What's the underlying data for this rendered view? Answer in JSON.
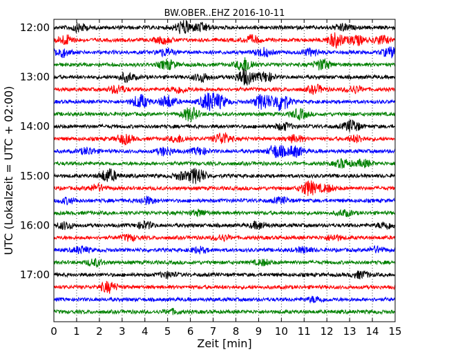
{
  "chart_data": {
    "type": "line",
    "title": "BW.OBER..EHZ 2016-10-11",
    "xlabel": "Zeit  [min]",
    "ylabel": "UTC (Lokalzeit = UTC + 02:00)",
    "xlim": [
      0,
      15
    ],
    "x_ticks": [
      "0",
      "1",
      "2",
      "3",
      "4",
      "5",
      "6",
      "7",
      "8",
      "9",
      "10",
      "11",
      "12",
      "13",
      "14",
      "15"
    ],
    "y_ticks": [
      {
        "label": "12:00",
        "row": 0
      },
      {
        "label": "13:00",
        "row": 4
      },
      {
        "label": "14:00",
        "row": 8
      },
      {
        "label": "15:00",
        "row": 12
      },
      {
        "label": "16:00",
        "row": 16
      },
      {
        "label": "17:00",
        "row": 20
      }
    ],
    "grid": "vertical dotted",
    "colors": [
      "#000000",
      "#ff0000",
      "#0000ff",
      "#008000"
    ],
    "row_duration_min": 15,
    "rows": [
      {
        "time": "12:00",
        "color": "#000000",
        "events": [
          {
            "t": 1.1,
            "amp": 0.6
          },
          {
            "t": 5.7,
            "amp": 1.0
          },
          {
            "t": 6.5,
            "amp": 0.6
          },
          {
            "t": 12.7,
            "amp": 0.5
          }
        ]
      },
      {
        "time": "12:15",
        "color": "#ff0000",
        "events": [
          {
            "t": 0.5,
            "amp": 0.7
          },
          {
            "t": 4.8,
            "amp": 0.5
          },
          {
            "t": 8.7,
            "amp": 0.6
          },
          {
            "t": 12.4,
            "amp": 1.1
          },
          {
            "t": 13.3,
            "amp": 0.7
          },
          {
            "t": 14.4,
            "amp": 0.6
          }
        ]
      },
      {
        "time": "12:30",
        "color": "#0000ff",
        "events": [
          {
            "t": 0.3,
            "amp": 0.7
          },
          {
            "t": 4.9,
            "amp": 0.5
          },
          {
            "t": 9.2,
            "amp": 0.6
          },
          {
            "t": 11.3,
            "amp": 0.5
          },
          {
            "t": 14.8,
            "amp": 0.7
          }
        ]
      },
      {
        "time": "12:45",
        "color": "#008000",
        "events": [
          {
            "t": 5.0,
            "amp": 0.7
          },
          {
            "t": 8.4,
            "amp": 1.1
          },
          {
            "t": 11.8,
            "amp": 0.8
          }
        ]
      },
      {
        "time": "13:00",
        "color": "#000000",
        "events": [
          {
            "t": 3.2,
            "amp": 0.6
          },
          {
            "t": 6.5,
            "amp": 0.6
          },
          {
            "t": 8.4,
            "amp": 1.2
          },
          {
            "t": 9.3,
            "amp": 0.7
          }
        ]
      },
      {
        "time": "13:15",
        "color": "#ff0000",
        "events": [
          {
            "t": 2.8,
            "amp": 0.6
          },
          {
            "t": 5.5,
            "amp": 0.5
          },
          {
            "t": 11.5,
            "amp": 0.6
          },
          {
            "t": 13.2,
            "amp": 0.5
          }
        ]
      },
      {
        "time": "13:30",
        "color": "#0000ff",
        "events": [
          {
            "t": 3.8,
            "amp": 1.0
          },
          {
            "t": 5.0,
            "amp": 0.9
          },
          {
            "t": 6.8,
            "amp": 1.3
          },
          {
            "t": 7.3,
            "amp": 0.8
          },
          {
            "t": 9.2,
            "amp": 1.2
          },
          {
            "t": 10.0,
            "amp": 1.4
          }
        ]
      },
      {
        "time": "13:45",
        "color": "#008000",
        "events": [
          {
            "t": 6.0,
            "amp": 1.0
          },
          {
            "t": 10.8,
            "amp": 0.7
          }
        ]
      },
      {
        "time": "14:00",
        "color": "#000000",
        "events": [
          {
            "t": 10.1,
            "amp": 0.5
          },
          {
            "t": 13.1,
            "amp": 0.9
          }
        ]
      },
      {
        "time": "14:15",
        "color": "#ff0000",
        "events": [
          {
            "t": 3.1,
            "amp": 0.7
          },
          {
            "t": 5.5,
            "amp": 0.5
          },
          {
            "t": 7.4,
            "amp": 0.9
          },
          {
            "t": 10.6,
            "amp": 0.5
          },
          {
            "t": 13.3,
            "amp": 0.5
          }
        ]
      },
      {
        "time": "14:30",
        "color": "#0000ff",
        "events": [
          {
            "t": 1.5,
            "amp": 0.5
          },
          {
            "t": 4.9,
            "amp": 0.6
          },
          {
            "t": 6.4,
            "amp": 0.5
          },
          {
            "t": 9.8,
            "amp": 1.0
          },
          {
            "t": 10.6,
            "amp": 0.8
          }
        ]
      },
      {
        "time": "14:45",
        "color": "#008000",
        "events": [
          {
            "t": 12.7,
            "amp": 0.6
          },
          {
            "t": 13.6,
            "amp": 0.5
          }
        ]
      },
      {
        "time": "15:00",
        "color": "#000000",
        "events": [
          {
            "t": 2.4,
            "amp": 1.0
          },
          {
            "t": 6.3,
            "amp": 1.2
          },
          {
            "t": 5.6,
            "amp": 0.5
          }
        ]
      },
      {
        "time": "15:15",
        "color": "#ff0000",
        "events": [
          {
            "t": 1.9,
            "amp": 0.5
          },
          {
            "t": 11.2,
            "amp": 1.1
          },
          {
            "t": 12.0,
            "amp": 0.5
          }
        ]
      },
      {
        "time": "15:30",
        "color": "#0000ff",
        "events": [
          {
            "t": 0.6,
            "amp": 0.4
          },
          {
            "t": 4.1,
            "amp": 0.5
          },
          {
            "t": 10.0,
            "amp": 0.4
          }
        ]
      },
      {
        "time": "15:45",
        "color": "#008000",
        "events": [
          {
            "t": 6.4,
            "amp": 0.4
          },
          {
            "t": 12.8,
            "amp": 0.4
          }
        ]
      },
      {
        "time": "16:00",
        "color": "#000000",
        "events": [
          {
            "t": 0.5,
            "amp": 0.5
          },
          {
            "t": 4.0,
            "amp": 0.5
          },
          {
            "t": 9.0,
            "amp": 0.5
          },
          {
            "t": 14.6,
            "amp": 0.5
          }
        ]
      },
      {
        "time": "16:15",
        "color": "#ff0000",
        "events": [
          {
            "t": 3.3,
            "amp": 0.4
          },
          {
            "t": 7.4,
            "amp": 0.4
          },
          {
            "t": 12.3,
            "amp": 0.4
          }
        ]
      },
      {
        "time": "16:30",
        "color": "#0000ff",
        "events": [
          {
            "t": 1.2,
            "amp": 0.5
          },
          {
            "t": 6.4,
            "amp": 0.4
          },
          {
            "t": 11.0,
            "amp": 0.4
          },
          {
            "t": 14.2,
            "amp": 0.4
          }
        ]
      },
      {
        "time": "16:45",
        "color": "#008000",
        "events": [
          {
            "t": 1.8,
            "amp": 0.5
          },
          {
            "t": 9.2,
            "amp": 0.4
          }
        ]
      },
      {
        "time": "17:00",
        "color": "#000000",
        "events": [
          {
            "t": 5.0,
            "amp": 0.4
          },
          {
            "t": 13.5,
            "amp": 0.5
          }
        ]
      },
      {
        "time": "17:15",
        "color": "#ff0000",
        "events": [
          {
            "t": 2.4,
            "amp": 0.8
          }
        ]
      },
      {
        "time": "17:30",
        "color": "#0000ff",
        "events": [
          {
            "t": 11.5,
            "amp": 0.4
          }
        ]
      },
      {
        "time": "17:45",
        "color": "#008000",
        "events": [
          {
            "t": 5.2,
            "amp": 0.3
          }
        ]
      }
    ]
  }
}
